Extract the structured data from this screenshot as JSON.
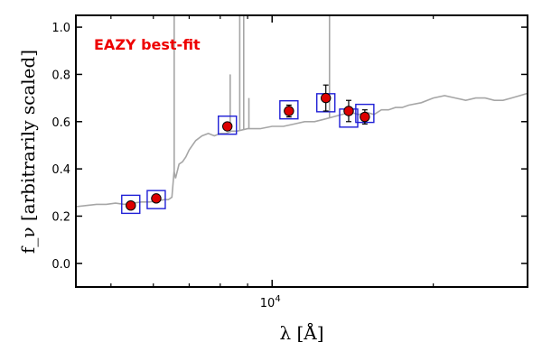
{
  "chart_data": {
    "type": "scatter",
    "title": "",
    "xlabel": "λ [Å]",
    "ylabel": "f_ν [arbitrarily scaled]",
    "xscale": "log",
    "xlim": [
      4300,
      30000
    ],
    "ylim": [
      -0.1,
      1.05
    ],
    "yticks": [
      0.0,
      0.2,
      0.4,
      0.6,
      0.8,
      1.0
    ],
    "ytick_labels": [
      "0.0",
      "0.2",
      "0.4",
      "0.6",
      "0.8",
      "1.0"
    ],
    "xtick_label": {
      "base": "10",
      "exponent": "4"
    },
    "xtick_value": 10000,
    "grid": false,
    "annotation": {
      "text": "EAZY best-fit",
      "color": "#ee0000"
    },
    "colors": {
      "template": "#a6a6a6",
      "observed": "#dd0000",
      "model": "#1f1fd6",
      "errorbar": "#000000"
    },
    "series": [
      {
        "role": "template-spectrum",
        "x": [
          4300,
          4500,
          4700,
          4900,
          5100,
          5300,
          5500,
          5700,
          5900,
          6100,
          6300,
          6400,
          6500,
          6560,
          6600,
          6700,
          6800,
          6900,
          7000,
          7200,
          7400,
          7600,
          7800,
          8000,
          8200,
          8400,
          8600,
          9000,
          9500,
          10000,
          10500,
          11000,
          11500,
          12000,
          12500,
          13000,
          13500,
          14000,
          14500,
          15000,
          15500,
          16000,
          16500,
          17000,
          17500,
          18000,
          19000,
          20000,
          21000,
          22000,
          23000,
          24000,
          25000,
          26000,
          27000,
          28000,
          29000,
          30000
        ],
        "y": [
          0.24,
          0.245,
          0.25,
          0.25,
          0.255,
          0.25,
          0.255,
          0.26,
          0.26,
          0.265,
          0.27,
          0.27,
          0.28,
          0.39,
          0.36,
          0.42,
          0.43,
          0.45,
          0.48,
          0.52,
          0.54,
          0.55,
          0.54,
          0.55,
          0.55,
          0.56,
          0.56,
          0.57,
          0.57,
          0.58,
          0.58,
          0.59,
          0.6,
          0.6,
          0.61,
          0.62,
          0.63,
          0.64,
          0.63,
          0.64,
          0.63,
          0.65,
          0.65,
          0.66,
          0.66,
          0.67,
          0.68,
          0.7,
          0.71,
          0.7,
          0.69,
          0.7,
          0.7,
          0.69,
          0.69,
          0.7,
          0.71,
          0.72
        ]
      },
      {
        "role": "template-emission-lines",
        "lines": [
          {
            "x": 6563,
            "y_top": 1.05
          },
          {
            "x": 8350,
            "y_top": 0.8
          },
          {
            "x": 8700,
            "y_top": 1.05
          },
          {
            "x": 8850,
            "y_top": 1.05
          },
          {
            "x": 9050,
            "y_top": 0.7
          },
          {
            "x": 12800,
            "y_top": 1.05
          }
        ]
      },
      {
        "role": "observed-photometry",
        "x": [
          5445,
          6075,
          8250,
          10750,
          12600,
          13900,
          14900
        ],
        "y": [
          0.245,
          0.275,
          0.58,
          0.645,
          0.7,
          0.645,
          0.62
        ],
        "yerr": [
          0.015,
          0.015,
          0.015,
          0.025,
          0.055,
          0.045,
          0.03
        ]
      },
      {
        "role": "model-photometry",
        "x": [
          5445,
          6075,
          8250,
          10750,
          12600,
          13900,
          14900
        ],
        "y": [
          0.25,
          0.27,
          0.585,
          0.65,
          0.68,
          0.615,
          0.635
        ]
      }
    ]
  }
}
